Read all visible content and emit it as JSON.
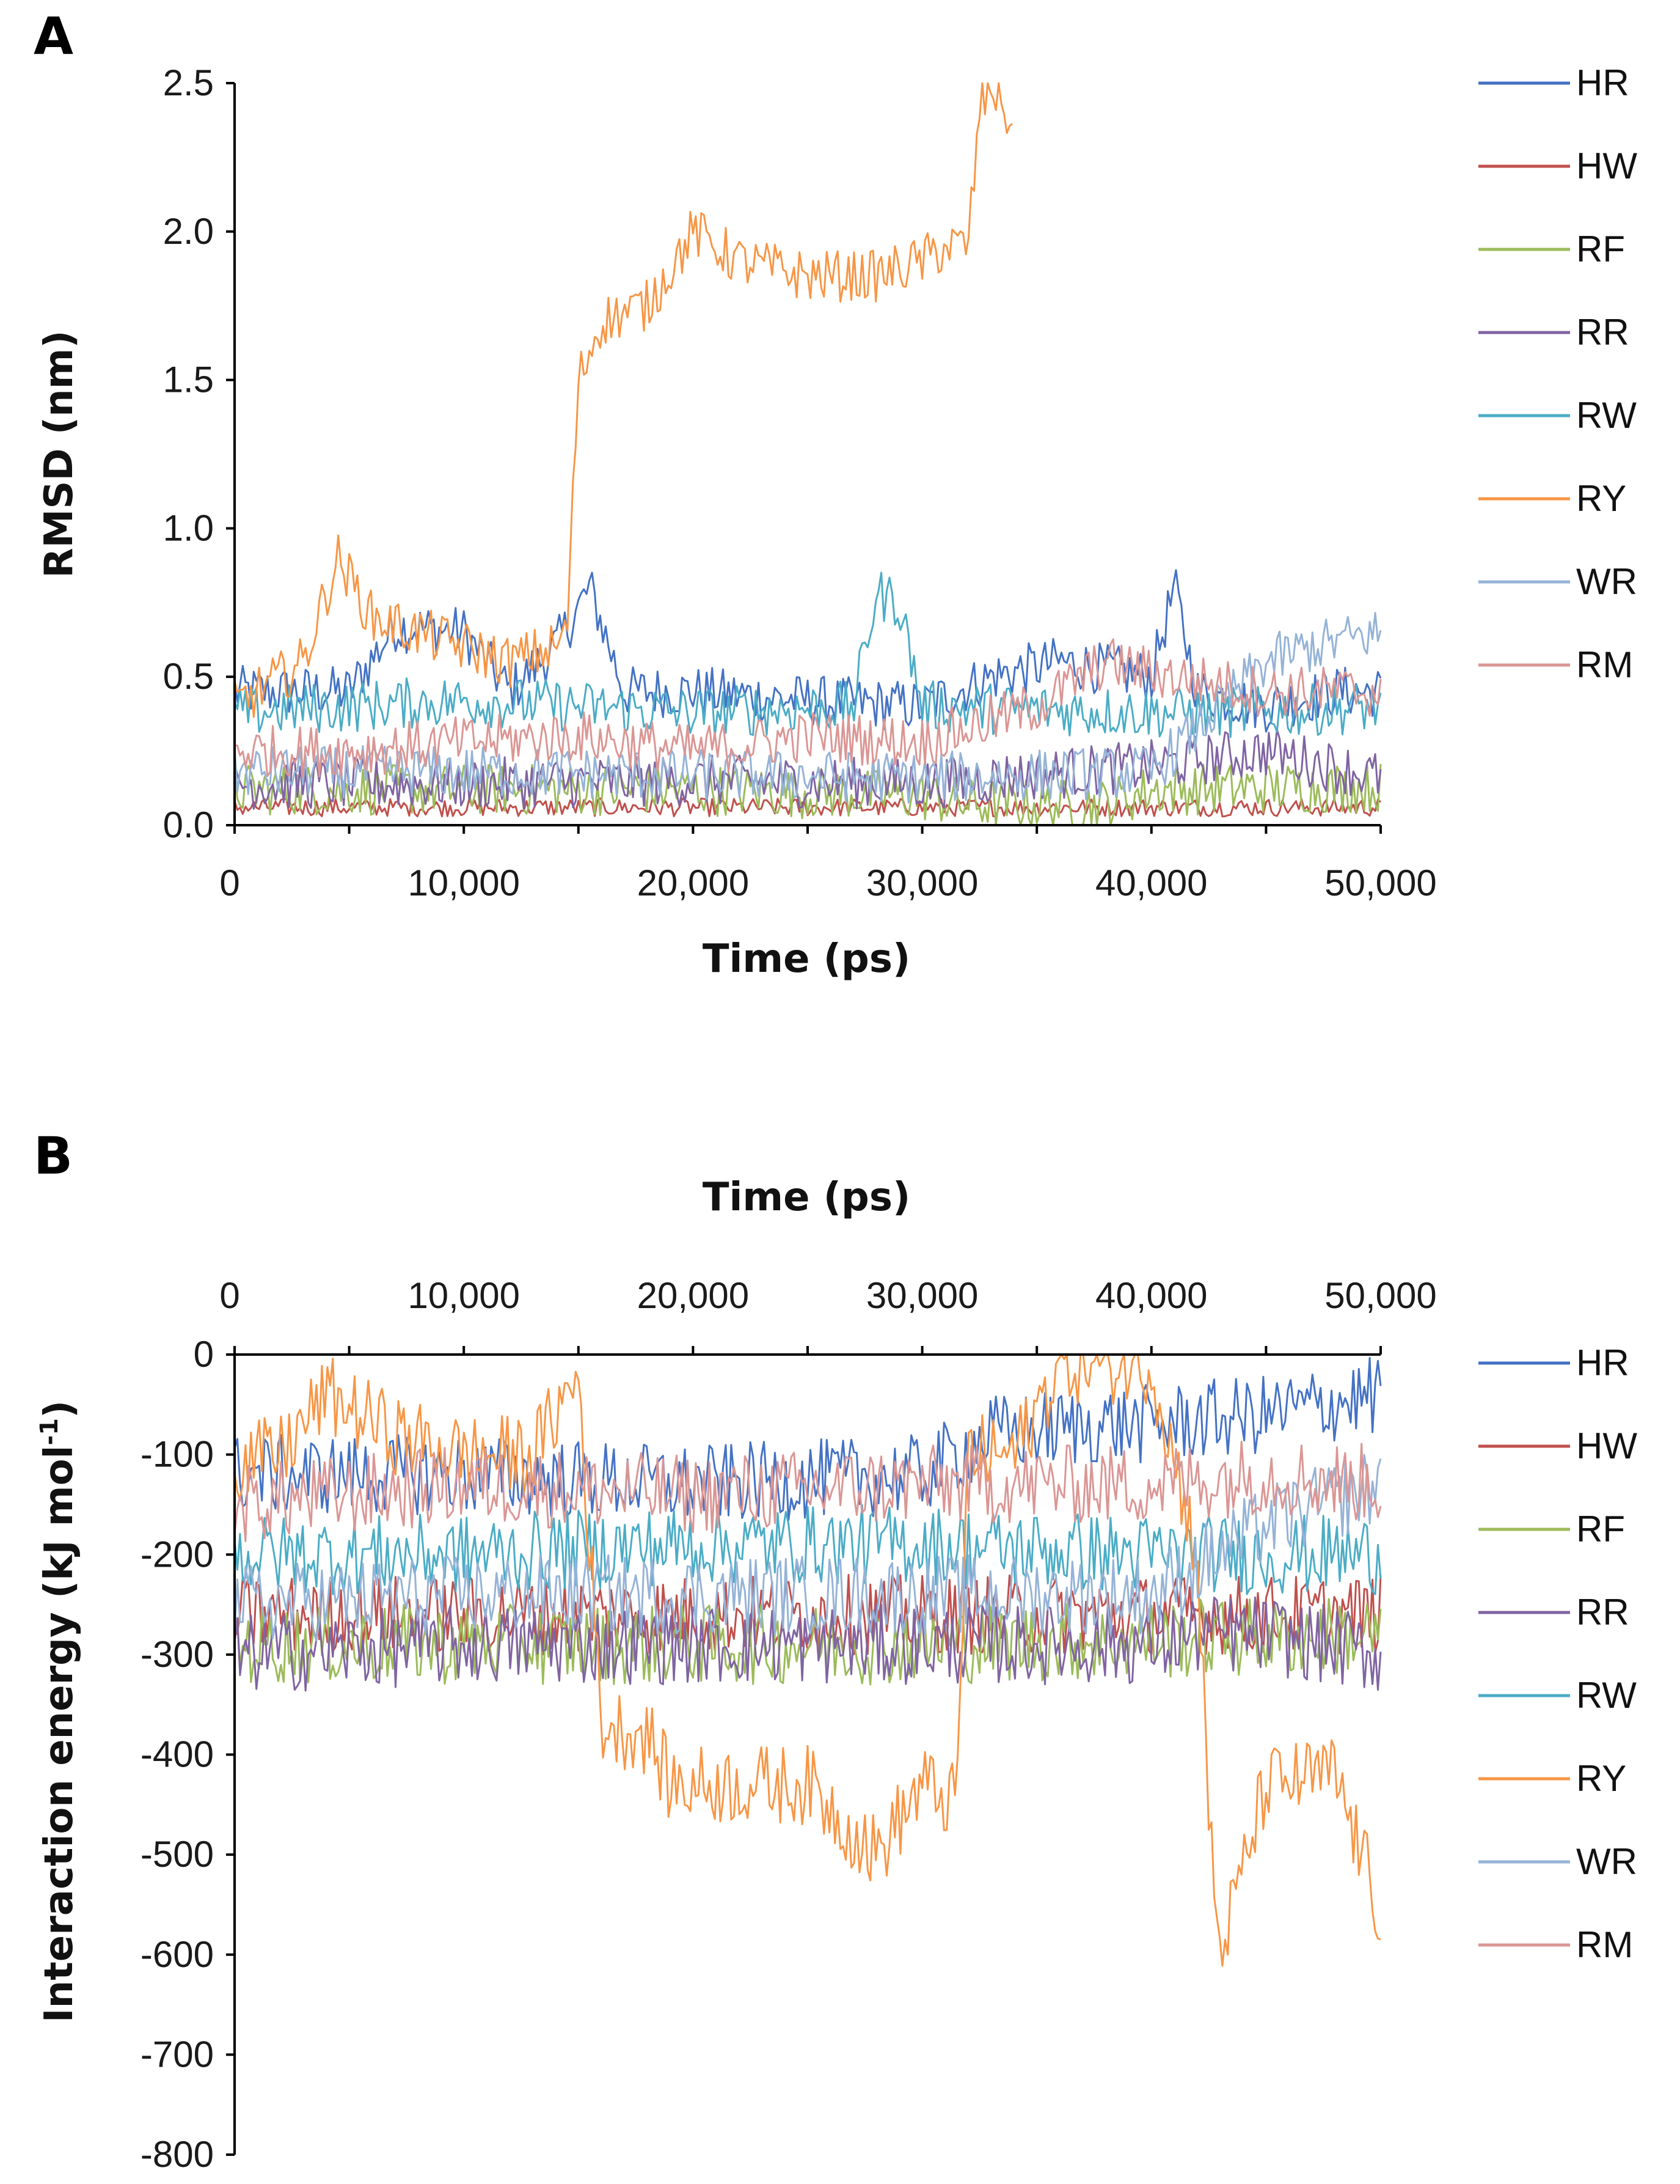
{
  "figure_title": "",
  "chart_data": [
    {
      "panel": "A",
      "type": "line",
      "xlabel": "Time (ps)",
      "ylabel": "RMSD (nm)",
      "xlim": [
        0,
        50000
      ],
      "ylim": [
        0,
        2.5
      ],
      "xticks": [
        "0",
        "10,000",
        "20,000",
        "30,000",
        "40,000",
        "50,000"
      ],
      "yticks": [
        "0.0",
        "0.5",
        "1.0",
        "1.5",
        "2.0",
        "2.5"
      ],
      "legend": [
        "HR",
        "HW",
        "RF",
        "RR",
        "RW",
        "RY",
        "WR",
        "RM"
      ],
      "series": [
        {
          "name": "HR",
          "color": "#4472C4",
          "x": [
            0,
            2000,
            5000,
            7000,
            10000,
            12000,
            14000,
            15500,
            17000,
            20000,
            25000,
            30000,
            33000,
            36000,
            40000,
            41000,
            42000,
            45000,
            48000,
            50000
          ],
          "values": [
            0.45,
            0.45,
            0.45,
            0.67,
            0.65,
            0.45,
            0.6,
            0.8,
            0.45,
            0.45,
            0.42,
            0.4,
            0.5,
            0.55,
            0.5,
            0.8,
            0.45,
            0.4,
            0.45,
            0.45
          ]
        },
        {
          "name": "HW",
          "color": "#C0504D",
          "x": [
            0,
            10000,
            20000,
            30000,
            40000,
            50000
          ],
          "values": [
            0.06,
            0.06,
            0.06,
            0.06,
            0.06,
            0.06
          ]
        },
        {
          "name": "RF",
          "color": "#9BBB59",
          "x": [
            0,
            10000,
            20000,
            30000,
            32000,
            38000,
            40000,
            50000
          ],
          "values": [
            0.12,
            0.12,
            0.12,
            0.1,
            0.07,
            0.07,
            0.12,
            0.13
          ]
        },
        {
          "name": "RR",
          "color": "#8064A2",
          "x": [
            0,
            10000,
            20000,
            30000,
            40000,
            45000,
            50000
          ],
          "values": [
            0.14,
            0.14,
            0.15,
            0.14,
            0.2,
            0.25,
            0.16
          ]
        },
        {
          "name": "RW",
          "color": "#4BACC6",
          "x": [
            0,
            5000,
            10000,
            20000,
            27000,
            28000,
            29000,
            30000,
            40000,
            45000,
            50000
          ],
          "values": [
            0.38,
            0.4,
            0.42,
            0.38,
            0.4,
            0.78,
            0.75,
            0.4,
            0.38,
            0.38,
            0.4
          ]
        },
        {
          "name": "RY",
          "color": "#F79646",
          "x": [
            0,
            3000,
            4500,
            6000,
            8000,
            10000,
            12000,
            14000,
            14500,
            15000,
            16000,
            18000,
            20000,
            22000,
            25000,
            28000,
            30000,
            31000,
            32000,
            32500,
            33000,
            34000
          ],
          "values": [
            0.4,
            0.55,
            0.9,
            0.7,
            0.65,
            0.6,
            0.55,
            0.6,
            0.65,
            1.5,
            1.7,
            1.75,
            2.0,
            1.9,
            1.85,
            1.85,
            1.9,
            1.95,
            1.95,
            2.4,
            2.5,
            2.35
          ]
        },
        {
          "name": "WR",
          "color": "#95B3D7",
          "x": [
            0,
            10000,
            20000,
            30000,
            40000,
            43000,
            45000,
            47000,
            50000
          ],
          "values": [
            0.18,
            0.18,
            0.17,
            0.16,
            0.18,
            0.4,
            0.55,
            0.6,
            0.65
          ]
        },
        {
          "name": "RM",
          "color": "#DA9694",
          "x": [
            0,
            5000,
            10000,
            15000,
            20000,
            25000,
            30000,
            35000,
            38000,
            41000,
            45000,
            50000
          ],
          "values": [
            0.25,
            0.25,
            0.28,
            0.3,
            0.25,
            0.3,
            0.28,
            0.4,
            0.55,
            0.5,
            0.45,
            0.45
          ]
        }
      ]
    },
    {
      "panel": "B",
      "type": "line",
      "xlabel": "Time (ps)",
      "ylabel": "Interaction energy (kJ mol-1)",
      "ylabel_main": "Interaction energy (kJ mol",
      "ylabel_sup": "-1",
      "ylabel_end": ")",
      "xlim": [
        0,
        50000
      ],
      "ylim": [
        -800,
        0
      ],
      "xticks": [
        "0",
        "10,000",
        "20,000",
        "30,000",
        "40,000",
        "50,000"
      ],
      "yticks": [
        "0",
        "-100",
        "-200",
        "-300",
        "-400",
        "-500",
        "-600",
        "-700",
        "-800"
      ],
      "legend": [
        "HR",
        "HW",
        "RF",
        "RR",
        "RW",
        "RY",
        "WR",
        "RM"
      ],
      "series": [
        {
          "name": "HR",
          "color": "#4472C4",
          "x": [
            0,
            10000,
            20000,
            30000,
            33000,
            38000,
            40000,
            45000,
            50000
          ],
          "values": [
            -120,
            -120,
            -130,
            -120,
            -80,
            -70,
            -70,
            -60,
            -40
          ]
        },
        {
          "name": "HW",
          "color": "#C0504D",
          "x": [
            0,
            10000,
            20000,
            30000,
            40000,
            50000
          ],
          "values": [
            -260,
            -260,
            -260,
            -260,
            -260,
            -260
          ]
        },
        {
          "name": "RF",
          "color": "#9BBB59",
          "x": [
            0,
            10000,
            20000,
            30000,
            40000,
            50000
          ],
          "values": [
            -290,
            -290,
            -290,
            -290,
            -285,
            -280
          ]
        },
        {
          "name": "RR",
          "color": "#8064A2",
          "x": [
            0,
            10000,
            20000,
            30000,
            40000,
            42000,
            45000,
            50000
          ],
          "values": [
            -300,
            -290,
            -290,
            -290,
            -290,
            -280,
            -280,
            -300
          ]
        },
        {
          "name": "RW",
          "color": "#4BACC6",
          "x": [
            0,
            10000,
            20000,
            30000,
            40000,
            50000
          ],
          "values": [
            -200,
            -200,
            -190,
            -190,
            -200,
            -200
          ]
        },
        {
          "name": "RY",
          "color": "#F79646",
          "x": [
            0,
            2000,
            4000,
            7000,
            10000,
            13000,
            15000,
            16000,
            18000,
            19000,
            22000,
            25000,
            28000,
            30000,
            31500,
            32000,
            34000,
            36000,
            40000,
            42000,
            42500,
            43000,
            45000,
            48000,
            50000
          ],
          "values": [
            -110,
            -100,
            -40,
            -80,
            -100,
            -100,
            -20,
            -370,
            -380,
            -430,
            -430,
            -430,
            -500,
            -430,
            -450,
            -100,
            -100,
            -10,
            -10,
            -200,
            -460,
            -600,
            -430,
            -420,
            -560
          ]
        },
        {
          "name": "WR",
          "color": "#95B3D7",
          "x": [
            0,
            10000,
            20000,
            30000,
            40000,
            45000,
            50000
          ],
          "values": [
            -250,
            -240,
            -240,
            -240,
            -240,
            -170,
            -130
          ]
        },
        {
          "name": "RM",
          "color": "#DA9694",
          "x": [
            0,
            10000,
            20000,
            30000,
            40000,
            45000,
            50000
          ],
          "values": [
            -150,
            -130,
            -140,
            -130,
            -130,
            -120,
            -130
          ]
        }
      ]
    }
  ]
}
